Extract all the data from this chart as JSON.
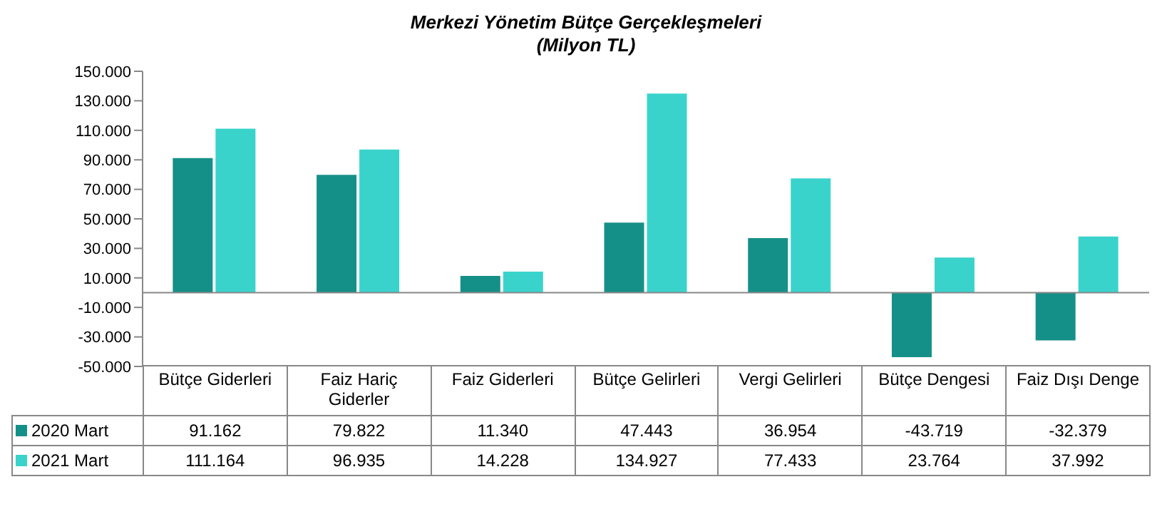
{
  "chart_data": {
    "type": "bar",
    "title": "Merkezi Yönetim Bütçe Gerçekleşmeleri",
    "subtitle": "(Milyon TL)",
    "categories": [
      "Bütçe Giderleri",
      "Faiz Hariç Giderler",
      "Faiz Giderleri",
      "Bütçe Gelirleri",
      "Vergi Gelirleri",
      "Bütçe Dengesi",
      "Faiz Dışı Denge"
    ],
    "series": [
      {
        "name": "2020  Mart",
        "color": "#159088",
        "values": [
          91162,
          79822,
          11340,
          47443,
          36954,
          -43719,
          -32379
        ],
        "value_labels": [
          "91.162",
          "79.822",
          "11.340",
          "47.443",
          "36.954",
          "-43.719",
          "-32.379"
        ]
      },
      {
        "name": "2021  Mart",
        "color": "#3ad3cc",
        "values": [
          111164,
          96935,
          14228,
          134927,
          77433,
          23764,
          37992
        ],
        "value_labels": [
          "111.164",
          "96.935",
          "14.228",
          "134.927",
          "77.433",
          "23.764",
          "37.992"
        ]
      }
    ],
    "ylim": [
      -50000,
      150000
    ],
    "yticks": [
      {
        "value": -50000,
        "label": "-50.000"
      },
      {
        "value": -30000,
        "label": "-30.000"
      },
      {
        "value": -10000,
        "label": "-10.000"
      },
      {
        "value": 10000,
        "label": "10.000"
      },
      {
        "value": 30000,
        "label": "30.000"
      },
      {
        "value": 50000,
        "label": "50.000"
      },
      {
        "value": 70000,
        "label": "70.000"
      },
      {
        "value": 90000,
        "label": "90.000"
      },
      {
        "value": 110000,
        "label": "110.000"
      },
      {
        "value": 130000,
        "label": "130.000"
      },
      {
        "value": 150000,
        "label": "150.000"
      }
    ],
    "grid": false,
    "legend": "bottom"
  }
}
